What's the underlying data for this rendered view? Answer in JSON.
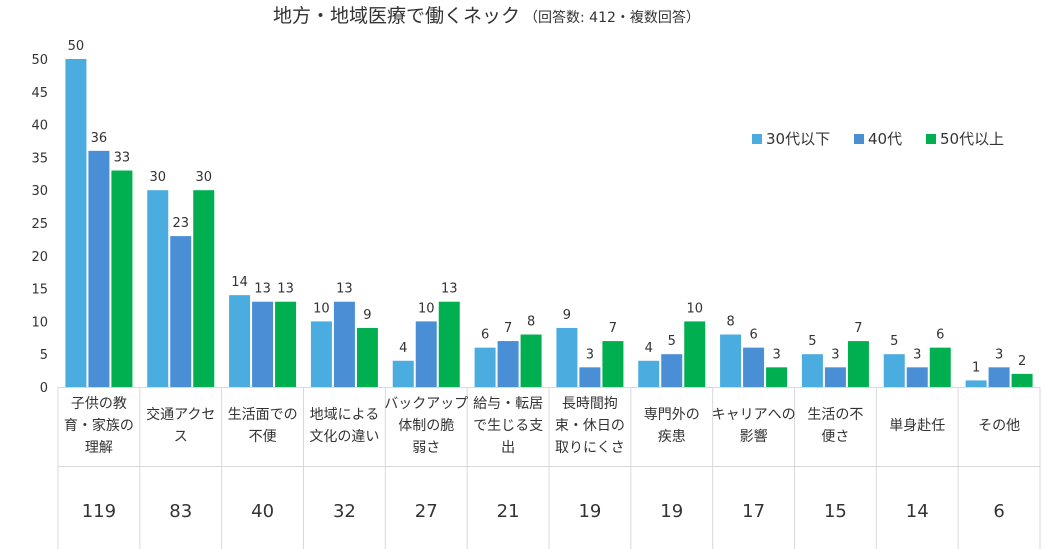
{
  "chart_data": {
    "type": "bar",
    "title": "地方・地域医療で働くネック",
    "subtitle": "（回答数: 412・複数回答）",
    "categories": [
      [
        "子供の教",
        "育・家族の",
        "理解"
      ],
      [
        "交通アクセ",
        "ス"
      ],
      [
        "生活面での",
        "不便"
      ],
      [
        "地域による",
        "文化の違い"
      ],
      [
        "バックアップ",
        "体制の脆",
        "弱さ"
      ],
      [
        "給与・転居",
        "で生じる支",
        "出"
      ],
      [
        "長時間拘",
        "束・休日の",
        "取りにくさ"
      ],
      [
        "専門外の",
        "疾患"
      ],
      [
        "キャリアへの",
        "影響"
      ],
      [
        "生活の不",
        "便さ"
      ],
      [
        "単身赴任"
      ],
      [
        "その他"
      ]
    ],
    "series": [
      {
        "name": "30代以下",
        "color": "#4BACE0",
        "values": [
          50,
          30,
          14,
          10,
          4,
          6,
          9,
          4,
          8,
          5,
          5,
          1
        ]
      },
      {
        "name": "40代",
        "color": "#4A8ED6",
        "values": [
          36,
          23,
          13,
          13,
          10,
          7,
          3,
          5,
          6,
          3,
          3,
          3
        ]
      },
      {
        "name": "50代以上",
        "color": "#00B050",
        "values": [
          33,
          30,
          13,
          9,
          13,
          8,
          7,
          10,
          3,
          7,
          6,
          2
        ]
      }
    ],
    "totals": [
      119,
      83,
      40,
      32,
      27,
      21,
      19,
      19,
      17,
      15,
      14,
      6
    ],
    "ylim": [
      0,
      50
    ],
    "yticks": [
      0,
      5,
      10,
      15,
      20,
      25,
      30,
      35,
      40,
      45,
      50
    ],
    "xlabel": "",
    "ylabel": "",
    "legend_position": "top-right",
    "grid": false
  }
}
